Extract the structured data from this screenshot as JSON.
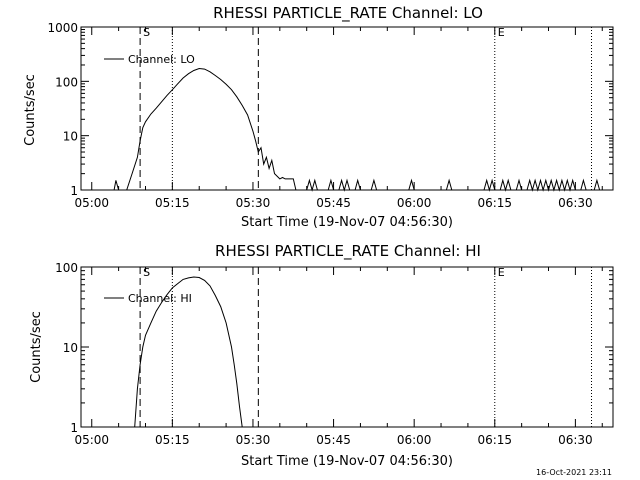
{
  "footer": "16-Oct-2021 23:11",
  "chart_data": [
    {
      "type": "line",
      "title": "RHESSI PARTICLE_RATE Channel: LO",
      "xlabel": "Start Time (19-Nov-07 04:56:30)",
      "ylabel": "Counts/sec",
      "yscale": "log",
      "ylim": [
        1,
        1000
      ],
      "yticks": [
        {
          "value": 1,
          "label": "1"
        },
        {
          "value": 10,
          "label": "10"
        },
        {
          "value": 100,
          "label": "100"
        },
        {
          "value": 1000,
          "label": "1000"
        }
      ],
      "xlim": [
        "04:58",
        "06:37"
      ],
      "xticks": [
        {
          "value": "05:00",
          "label": "05:00"
        },
        {
          "value": "05:15",
          "label": "05:15"
        },
        {
          "value": "05:30",
          "label": "05:30"
        },
        {
          "value": "05:45",
          "label": "05:45"
        },
        {
          "value": "06:00",
          "label": "06:00"
        },
        {
          "value": "06:15",
          "label": "06:15"
        },
        {
          "value": "06:30",
          "label": "06:30"
        }
      ],
      "legend": {
        "position": "top-left",
        "entries": [
          "Channel: LO"
        ]
      },
      "markers": [
        {
          "time": "05:09",
          "style": "dashed",
          "label": "S"
        },
        {
          "time": "05:15",
          "style": "dotted",
          "label": ""
        },
        {
          "time": "05:31",
          "style": "dashed",
          "label": ""
        },
        {
          "time": "06:15",
          "style": "dotted",
          "label": "E"
        },
        {
          "time": "06:33",
          "style": "dotted",
          "label": ""
        }
      ],
      "series": [
        {
          "name": "Channel: LO",
          "points": [
            [
              "05:04:10",
              1
            ],
            [
              "05:04:30",
              1.5
            ],
            [
              "05:05:00",
              1
            ],
            [
              "05:06:30",
              1
            ],
            [
              "05:07:30",
              2
            ],
            [
              "05:08:30",
              4
            ],
            [
              "05:09:00",
              8
            ],
            [
              "05:09:30",
              14
            ],
            [
              "05:10:00",
              18
            ],
            [
              "05:11:00",
              25
            ],
            [
              "05:12:00",
              32
            ],
            [
              "05:13:00",
              42
            ],
            [
              "05:14:00",
              55
            ],
            [
              "05:15:00",
              70
            ],
            [
              "05:16:00",
              90
            ],
            [
              "05:17:00",
              115
            ],
            [
              "05:18:00",
              138
            ],
            [
              "05:19:00",
              158
            ],
            [
              "05:20:00",
              172
            ],
            [
              "05:21:00",
              168
            ],
            [
              "05:22:00",
              150
            ],
            [
              "05:23:00",
              128
            ],
            [
              "05:24:00",
              108
            ],
            [
              "05:25:00",
              88
            ],
            [
              "05:26:00",
              70
            ],
            [
              "05:27:00",
              52
            ],
            [
              "05:28:00",
              36
            ],
            [
              "05:29:00",
              24
            ],
            [
              "05:30:00",
              12
            ],
            [
              "05:30:30",
              8
            ],
            [
              "05:31:00",
              5
            ],
            [
              "05:31:30",
              6
            ],
            [
              "05:32:00",
              3
            ],
            [
              "05:32:30",
              4
            ],
            [
              "05:33:00",
              2.5
            ],
            [
              "05:33:30",
              3.5
            ],
            [
              "05:34:00",
              2
            ],
            [
              "05:35:00",
              1.6
            ],
            [
              "05:35:30",
              1.7
            ],
            [
              "05:36:00",
              1.6
            ],
            [
              "05:37:30",
              1.6
            ],
            [
              "05:38:00",
              1
            ],
            [
              "05:40:00",
              1
            ],
            [
              "05:40:30",
              1.5
            ],
            [
              "05:41:00",
              1
            ],
            [
              "05:41:30",
              1.5
            ],
            [
              "05:42:00",
              1
            ],
            [
              "05:44:00",
              1
            ],
            [
              "05:44:30",
              1.5
            ],
            [
              "05:45:00",
              1
            ],
            [
              "05:46:00",
              1
            ],
            [
              "05:46:30",
              1.5
            ],
            [
              "05:47:00",
              1
            ],
            [
              "05:47:30",
              1.5
            ],
            [
              "05:48:00",
              1
            ],
            [
              "05:49:00",
              1
            ],
            [
              "05:49:30",
              1.5
            ],
            [
              "05:50:00",
              1
            ],
            [
              "05:52:00",
              1
            ],
            [
              "05:52:30",
              1.5
            ],
            [
              "05:53:00",
              1
            ],
            [
              "05:59:00",
              1
            ],
            [
              "05:59:30",
              1.5
            ],
            [
              "06:00:00",
              1
            ],
            [
              "06:06:00",
              1
            ],
            [
              "06:06:30",
              1.5
            ],
            [
              "06:07:00",
              1
            ],
            [
              "06:13:00",
              1
            ],
            [
              "06:13:30",
              1.5
            ],
            [
              "06:14:00",
              1
            ],
            [
              "06:14:30",
              1.5
            ],
            [
              "06:15:00",
              1
            ],
            [
              "06:16:00",
              1
            ],
            [
              "06:16:30",
              1.5
            ],
            [
              "06:17:00",
              1
            ],
            [
              "06:17:30",
              1.5
            ],
            [
              "06:18:00",
              1
            ],
            [
              "06:19:00",
              1
            ],
            [
              "06:19:30",
              1.5
            ],
            [
              "06:20:00",
              1
            ],
            [
              "06:21:00",
              1
            ],
            [
              "06:21:30",
              1.5
            ],
            [
              "06:22:00",
              1
            ],
            [
              "06:22:30",
              1.5
            ],
            [
              "06:23:00",
              1
            ],
            [
              "06:23:30",
              1.5
            ],
            [
              "06:24:00",
              1
            ],
            [
              "06:24:30",
              1.5
            ],
            [
              "06:25:00",
              1
            ],
            [
              "06:25:30",
              1.5
            ],
            [
              "06:26:00",
              1
            ],
            [
              "06:26:30",
              1.5
            ],
            [
              "06:27:00",
              1
            ],
            [
              "06:27:30",
              1.5
            ],
            [
              "06:28:00",
              1
            ],
            [
              "06:28:30",
              1.5
            ],
            [
              "06:29:00",
              1
            ],
            [
              "06:29:30",
              1.5
            ],
            [
              "06:30:00",
              1
            ],
            [
              "06:31:00",
              1
            ],
            [
              "06:31:30",
              1.5
            ],
            [
              "06:32:00",
              1
            ],
            [
              "06:33:30",
              1
            ],
            [
              "06:34:00",
              1.5
            ],
            [
              "06:34:30",
              1
            ]
          ]
        }
      ]
    },
    {
      "type": "line",
      "title": "RHESSI PARTICLE_RATE Channel: HI",
      "xlabel": "Start Time (19-Nov-07 04:56:30)",
      "ylabel": "Counts/sec",
      "yscale": "log",
      "ylim": [
        1,
        100
      ],
      "yticks": [
        {
          "value": 1,
          "label": "1"
        },
        {
          "value": 10,
          "label": "10"
        },
        {
          "value": 100,
          "label": "100"
        }
      ],
      "xlim": [
        "04:58",
        "06:37"
      ],
      "xticks": [
        {
          "value": "05:00",
          "label": "05:00"
        },
        {
          "value": "05:15",
          "label": "05:15"
        },
        {
          "value": "05:30",
          "label": "05:30"
        },
        {
          "value": "05:45",
          "label": "05:45"
        },
        {
          "value": "06:00",
          "label": "06:00"
        },
        {
          "value": "06:15",
          "label": "06:15"
        },
        {
          "value": "06:30",
          "label": "06:30"
        }
      ],
      "legend": {
        "position": "top-left",
        "entries": [
          "Channel: HI"
        ]
      },
      "markers": [
        {
          "time": "05:09",
          "style": "dashed",
          "label": "S"
        },
        {
          "time": "05:15",
          "style": "dotted",
          "label": ""
        },
        {
          "time": "05:31",
          "style": "dashed",
          "label": ""
        },
        {
          "time": "06:15",
          "style": "dotted",
          "label": "E"
        },
        {
          "time": "06:33",
          "style": "dotted",
          "label": ""
        }
      ],
      "series": [
        {
          "name": "Channel: HI",
          "points": [
            [
              "05:08:00",
              1
            ],
            [
              "05:08:30",
              3
            ],
            [
              "05:09:00",
              6
            ],
            [
              "05:09:30",
              10
            ],
            [
              "05:10:00",
              14
            ],
            [
              "05:11:00",
              20
            ],
            [
              "05:12:00",
              28
            ],
            [
              "05:13:00",
              36
            ],
            [
              "05:14:00",
              45
            ],
            [
              "05:15:00",
              55
            ],
            [
              "05:16:00",
              62
            ],
            [
              "05:17:00",
              70
            ],
            [
              "05:18:00",
              73
            ],
            [
              "05:19:00",
              75
            ],
            [
              "05:20:00",
              74
            ],
            [
              "05:21:00",
              68
            ],
            [
              "05:22:00",
              58
            ],
            [
              "05:23:00",
              44
            ],
            [
              "05:24:00",
              32
            ],
            [
              "05:25:00",
              20
            ],
            [
              "05:26:00",
              10
            ],
            [
              "05:26:30",
              6
            ],
            [
              "05:27:00",
              3.5
            ],
            [
              "05:27:30",
              1.8
            ],
            [
              "05:28:00",
              1
            ]
          ]
        }
      ]
    }
  ]
}
